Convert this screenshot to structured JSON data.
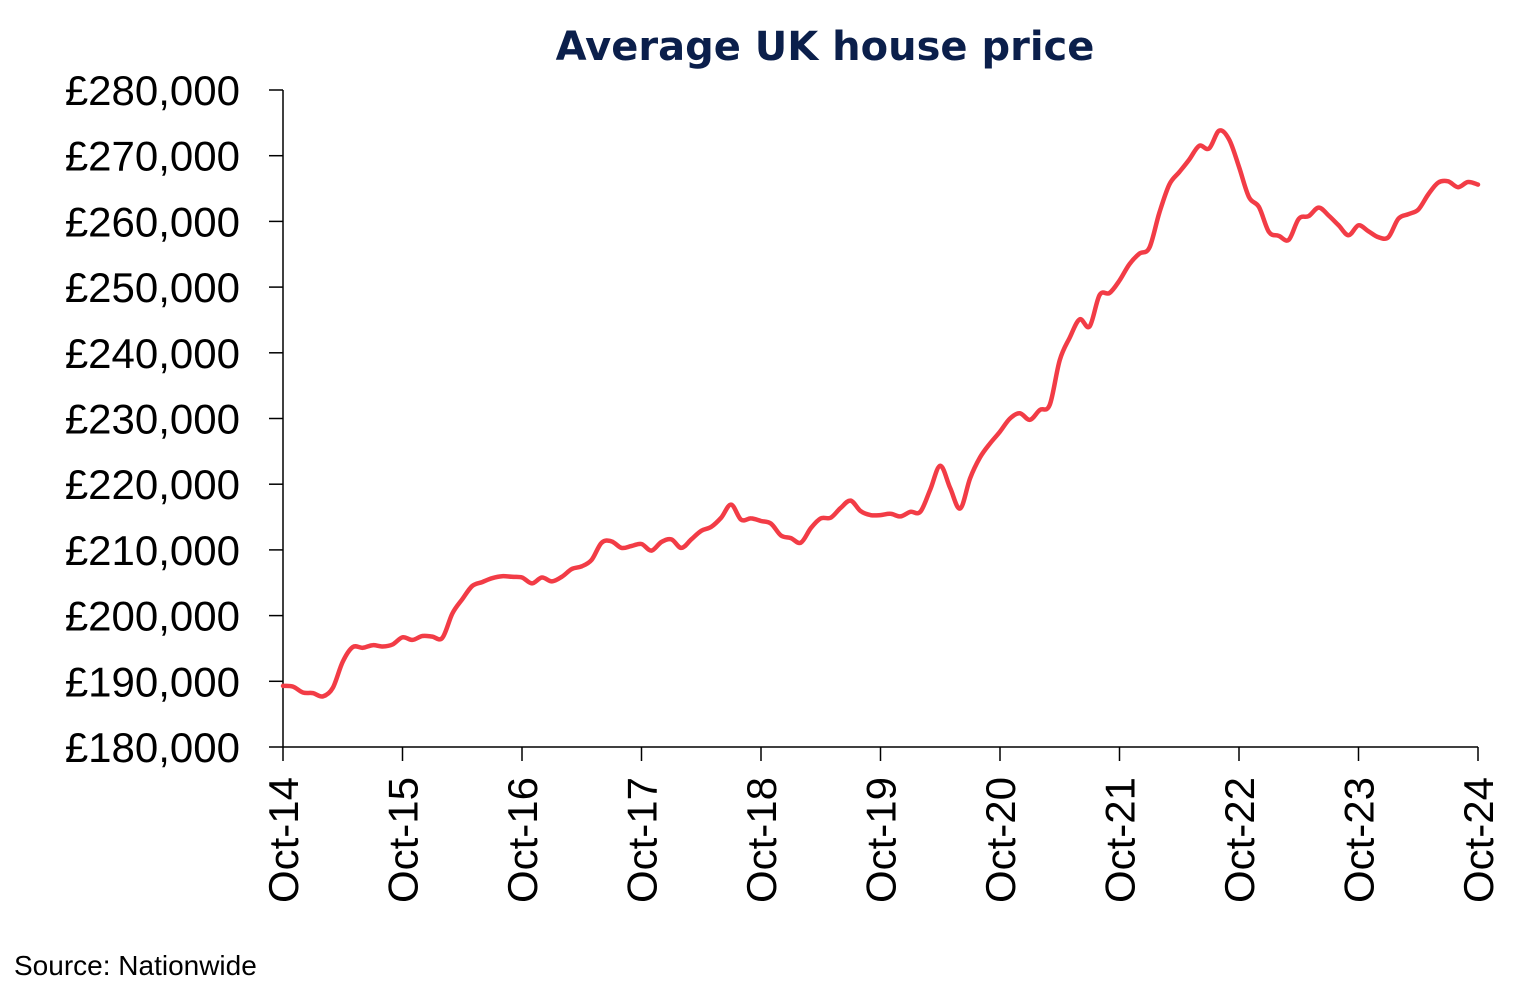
{
  "chart_data": {
    "type": "line",
    "title": "Average UK house price",
    "source": "Source: Nationwide",
    "xlabel": "",
    "ylabel": "",
    "ylim": [
      180000,
      280000
    ],
    "y_ticks": [
      180000,
      190000,
      200000,
      210000,
      220000,
      230000,
      240000,
      250000,
      260000,
      270000,
      280000
    ],
    "y_tick_labels": [
      "£180,000",
      "£190,000",
      "£200,000",
      "£210,000",
      "£220,000",
      "£230,000",
      "£240,000",
      "£250,000",
      "£260,000",
      "£270,000",
      "£280,000"
    ],
    "x_tick_labels": [
      "Oct-14",
      "Oct-15",
      "Oct-16",
      "Oct-17",
      "Oct-18",
      "Oct-19",
      "Oct-20",
      "Oct-21",
      "Oct-22",
      "Oct-23",
      "Oct-24"
    ],
    "grid": false,
    "legend": "none",
    "series": [
      {
        "color": "#f23c46",
        "x": [
          "Oct-14",
          "Nov-14",
          "Dec-14",
          "Jan-15",
          "Feb-15",
          "Mar-15",
          "Apr-15",
          "May-15",
          "Jun-15",
          "Jul-15",
          "Aug-15",
          "Sep-15",
          "Oct-15",
          "Nov-15",
          "Dec-15",
          "Jan-16",
          "Feb-16",
          "Mar-16",
          "Apr-16",
          "May-16",
          "Jun-16",
          "Jul-16",
          "Aug-16",
          "Sep-16",
          "Oct-16",
          "Nov-16",
          "Dec-16",
          "Jan-17",
          "Feb-17",
          "Mar-17",
          "Apr-17",
          "May-17",
          "Jun-17",
          "Jul-17",
          "Aug-17",
          "Sep-17",
          "Oct-17",
          "Nov-17",
          "Dec-17",
          "Jan-18",
          "Feb-18",
          "Mar-18",
          "Apr-18",
          "May-18",
          "Jun-18",
          "Jul-18",
          "Aug-18",
          "Sep-18",
          "Oct-18",
          "Nov-18",
          "Dec-18",
          "Jan-19",
          "Feb-19",
          "Mar-19",
          "Apr-19",
          "May-19",
          "Jun-19",
          "Jul-19",
          "Aug-19",
          "Sep-19",
          "Oct-19",
          "Nov-19",
          "Dec-19",
          "Jan-20",
          "Feb-20",
          "Mar-20",
          "Apr-20",
          "May-20",
          "Jun-20",
          "Jul-20",
          "Aug-20",
          "Sep-20",
          "Oct-20",
          "Nov-20",
          "Dec-20",
          "Jan-21",
          "Feb-21",
          "Mar-21",
          "Apr-21",
          "May-21",
          "Jun-21",
          "Jul-21",
          "Aug-21",
          "Sep-21",
          "Oct-21",
          "Nov-21",
          "Dec-21",
          "Jan-22",
          "Feb-22",
          "Mar-22",
          "Apr-22",
          "May-22",
          "Jun-22",
          "Jul-22",
          "Aug-22",
          "Sep-22",
          "Oct-22",
          "Nov-22",
          "Dec-22",
          "Jan-23",
          "Feb-23",
          "Mar-23",
          "Apr-23",
          "May-23",
          "Jun-23",
          "Jul-23",
          "Aug-23",
          "Sep-23",
          "Oct-23",
          "Nov-23",
          "Dec-23",
          "Jan-24",
          "Feb-24",
          "Mar-24",
          "Apr-24",
          "May-24",
          "Jun-24",
          "Jul-24",
          "Aug-24",
          "Sep-24",
          "Oct-24"
        ],
        "values": [
          189300,
          189200,
          188300,
          188200,
          187700,
          189000,
          193000,
          195200,
          195100,
          195500,
          195300,
          195600,
          196700,
          196300,
          196900,
          196800,
          196600,
          200300,
          202500,
          204500,
          205100,
          205700,
          206000,
          205900,
          205800,
          204900,
          205800,
          205200,
          205900,
          207100,
          207500,
          208500,
          211100,
          211300,
          210300,
          210600,
          210900,
          209900,
          211200,
          211600,
          210300,
          211600,
          212900,
          213500,
          214900,
          216900,
          214600,
          214800,
          214400,
          214000,
          212200,
          211800,
          211100,
          213300,
          214800,
          214900,
          216400,
          217500,
          215900,
          215300,
          215300,
          215500,
          215100,
          215800,
          215800,
          219200,
          222800,
          219400,
          216300,
          220900,
          224100,
          226200,
          228000,
          230000,
          230800,
          229800,
          231300,
          232100,
          238900,
          242300,
          245100,
          244000,
          248800,
          249100,
          251000,
          253500,
          255100,
          256000,
          261300,
          265600,
          267500,
          269400,
          271500,
          271100,
          273800,
          272500,
          268300,
          263700,
          262200,
          258400,
          257800,
          257200,
          260400,
          260800,
          262100,
          260900,
          259400,
          257900,
          259400,
          258500,
          257600,
          257600,
          260400,
          261100,
          261800,
          264100,
          265900,
          266100,
          265200,
          266000,
          265600
        ]
      }
    ]
  }
}
